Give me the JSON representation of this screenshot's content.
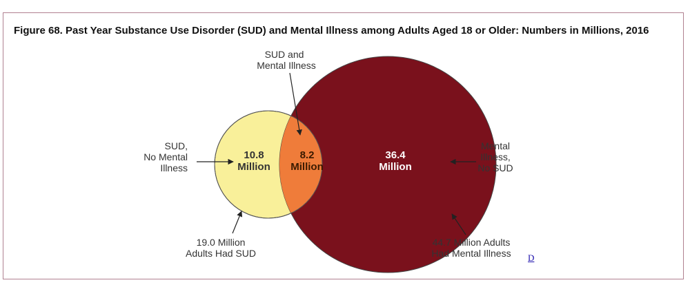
{
  "figure": {
    "title": "Figure 68. Past Year Substance Use Disorder (SUD) and Mental Illness among Adults Aged 18 or Older: Numbers in Millions, 2016",
    "link_label": "D"
  },
  "venn": {
    "colors": {
      "sud_only": "#f9f09a",
      "overlap": "#ef7c3a",
      "mental_only": "#7a111c",
      "sud_text": "#333333",
      "overlap_text": "#3a1a00",
      "mental_text": "#ffffff"
    },
    "regions": {
      "sud_only": {
        "value": "10.8",
        "unit": "Million"
      },
      "overlap": {
        "value": "8.2",
        "unit": "Million"
      },
      "mental_only": {
        "value": "36.4",
        "unit": "Million"
      }
    },
    "callouts": {
      "overlap": [
        "SUD and",
        "Mental Illness"
      ],
      "sud_only": [
        "SUD,",
        "No Mental",
        "Illness"
      ],
      "mental_only": [
        "Mental",
        "Illness,",
        "No SUD"
      ],
      "sud_total": [
        "19.0 Million",
        "Adults Had SUD"
      ],
      "mental_total": [
        "44.7 Million Adults",
        "Had Mental Illness"
      ]
    }
  }
}
